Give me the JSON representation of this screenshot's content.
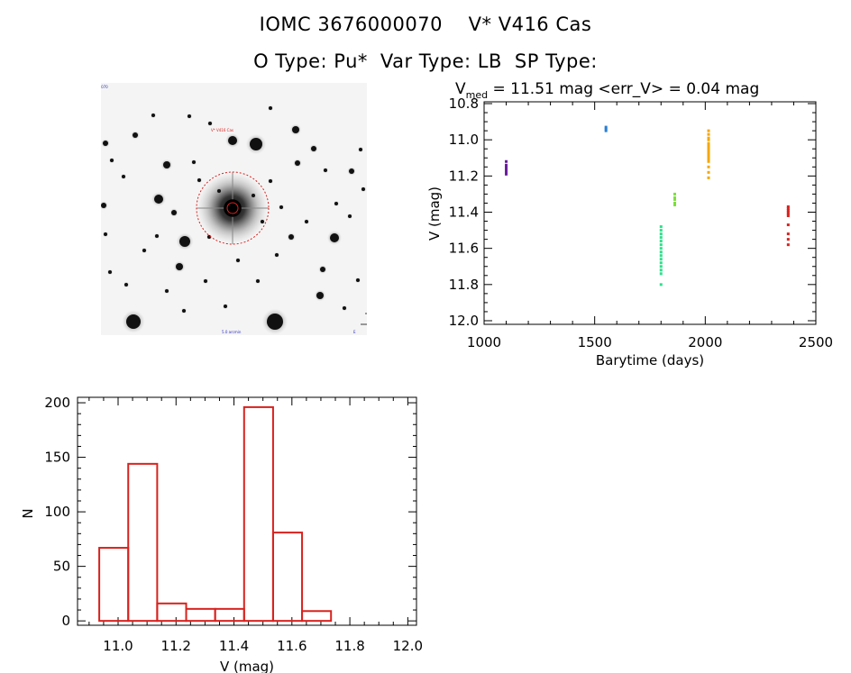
{
  "header": {
    "object_id": "IOMC 3676000070",
    "star_name": "V* V416 Cas",
    "o_type": "O Type: Pu*",
    "var_type": "Var Type: LB",
    "sp_type": "SP Type:"
  },
  "finder": {
    "label_top_left": "ID 0070",
    "label_target": "V* V416 Cas",
    "label_bottom_left": "N",
    "label_bottom_center": "5.0 arcmin",
    "label_bottom_right": "E"
  },
  "chart_data": [
    {
      "type": "scatter",
      "title_main": "V",
      "title_sub": "med",
      "title_rest": " = 11.51 mag <err_V> = 0.04 mag",
      "xlabel": "Barytime (days)",
      "ylabel": "V (mag)",
      "xlim": [
        1000,
        2500
      ],
      "ylim": [
        12.02,
        10.79
      ],
      "y_inverted": true,
      "xticks": [
        1000,
        1500,
        2000,
        2500
      ],
      "xtick_labels": [
        "1000",
        "1500",
        "2000",
        "2500"
      ],
      "yticks": [
        10.8,
        11.0,
        11.2,
        11.4,
        11.6,
        11.8,
        12.0
      ],
      "ytick_labels": [
        "10.8",
        "11.0",
        "11.2",
        "11.4",
        "11.6",
        "11.8",
        "12.0"
      ],
      "series": [
        {
          "color": "#6a1e9c",
          "x": [
            1100,
            1100,
            1100,
            1100,
            1100,
            1100,
            1100
          ],
          "y": [
            11.12,
            11.14,
            11.15,
            11.16,
            11.17,
            11.18,
            11.19
          ]
        },
        {
          "color": "#2a7fd4",
          "x": [
            1551,
            1551,
            1551
          ],
          "y": [
            10.93,
            10.94,
            10.95
          ]
        },
        {
          "color": "#2ee08a",
          "x": [
            1800,
            1800,
            1800,
            1800,
            1800,
            1800,
            1800,
            1800,
            1800,
            1800,
            1800,
            1800,
            1800,
            1800,
            1800
          ],
          "y": [
            11.48,
            11.5,
            11.52,
            11.54,
            11.56,
            11.58,
            11.6,
            11.62,
            11.64,
            11.66,
            11.68,
            11.7,
            11.72,
            11.74,
            11.8
          ]
        },
        {
          "color": "#7be03a",
          "x": [
            1862,
            1862,
            1862,
            1862,
            1862
          ],
          "y": [
            11.3,
            11.32,
            11.33,
            11.35,
            11.36
          ]
        },
        {
          "color": "#f5a800",
          "x": [
            2015,
            2015,
            2015,
            2015,
            2015,
            2015,
            2015,
            2015,
            2015,
            2015,
            2015,
            2015,
            2015,
            2015,
            2015,
            2015,
            2015,
            2015
          ],
          "y": [
            10.95,
            10.97,
            10.99,
            11.0,
            11.02,
            11.03,
            11.04,
            11.05,
            11.06,
            11.07,
            11.08,
            11.09,
            11.1,
            11.11,
            11.12,
            11.15,
            11.18,
            11.21
          ]
        },
        {
          "color": "#d8221e",
          "x": [
            2375,
            2375,
            2375,
            2375,
            2375,
            2375,
            2375,
            2375,
            2375,
            2375
          ],
          "y": [
            11.37,
            11.38,
            11.39,
            11.4,
            11.41,
            11.42,
            11.47,
            11.52,
            11.55,
            11.58
          ]
        }
      ]
    },
    {
      "type": "bar",
      "subtype": "histogram",
      "xlabel": "V (mag)",
      "ylabel": "N",
      "xlim": [
        10.86,
        12.03
      ],
      "ylim": [
        -4,
        205
      ],
      "xticks": [
        11.0,
        11.2,
        11.4,
        11.6,
        11.8,
        12.0
      ],
      "xtick_labels": [
        "11.0",
        "11.2",
        "11.4",
        "11.6",
        "11.8",
        "12.0"
      ],
      "yticks": [
        0,
        50,
        100,
        150,
        200
      ],
      "ytick_labels": [
        "0",
        "50",
        "100",
        "150",
        "200"
      ],
      "bin_edges": [
        10.935,
        11.035,
        11.135,
        11.235,
        11.335,
        11.435,
        11.535,
        11.635,
        11.735,
        11.835
      ],
      "values": [
        67,
        144,
        16,
        11,
        11,
        196,
        81,
        9,
        0
      ],
      "color": "#d8221e"
    }
  ]
}
